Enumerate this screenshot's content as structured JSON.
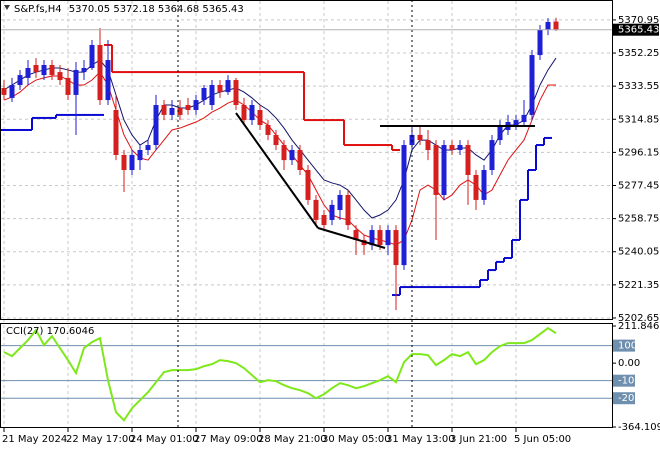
{
  "chart_data": {
    "type": "candlestick",
    "symbol": "S&P.fs,H4",
    "categories": [
      "21 May 2024",
      null,
      null,
      null,
      null,
      null,
      null,
      null,
      "22 May 17:00",
      null,
      null,
      null,
      null,
      null,
      null,
      null,
      "24 May 01:00",
      null,
      null,
      null,
      null,
      null,
      null,
      null,
      "27 May 09:00",
      null,
      null,
      null,
      null,
      null,
      null,
      null,
      "28 May 21:00",
      null,
      null,
      null,
      null,
      null,
      null,
      null,
      "30 May 05:00",
      null,
      null,
      null,
      null,
      null,
      null,
      null,
      "31 May 13:00",
      null,
      null,
      null,
      null,
      null,
      null,
      null,
      "3 Jun 21:00",
      null,
      null,
      null,
      null,
      null,
      null,
      null,
      "5 Jun 05:00",
      null,
      null,
      null,
      null,
      null
    ],
    "open": [
      5332.5,
      5326.9,
      5334.2,
      5338.2,
      5345.5,
      5339.8,
      5345.5,
      5341.5,
      5338.2,
      5328.6,
      5341.5,
      5343.8,
      5356.8,
      5325.7,
      5320.1,
      5294.7,
      5286.2,
      5291.8,
      5297.5,
      5300.3,
      5322.9,
      5317.3,
      5321.2,
      5322.9,
      5320.1,
      5325.7,
      5322.9,
      5334.2,
      5330.2,
      5337.0,
      5322.9,
      5314.4,
      5320.1,
      5311.6,
      5306.0,
      5300.3,
      5291.8,
      5297.5,
      5286.2,
      5269.3,
      5260.8,
      5258.0,
      5263.6,
      5272.1,
      5252.3,
      5246.7,
      5243.8,
      5252.3,
      5243.8,
      5252.3,
      5232.5,
      5300.3,
      5306.0,
      5303.1,
      5300.3,
      5272.1,
      5300.3,
      5297.5,
      5300.3,
      5283.4,
      5269.3,
      5286.2,
      5303.1,
      5308.8,
      5311.6,
      5313.3,
      5317.3,
      5351.1,
      5365.3,
      5370.05
    ],
    "high": [
      5337.0,
      5338.2,
      5342.7,
      5348.3,
      5349.4,
      5348.3,
      5348.3,
      5345.5,
      5343.8,
      5347.2,
      5348.3,
      5359.6,
      5366.4,
      5359.6,
      5328.6,
      5297.5,
      5297.5,
      5300.3,
      5303.1,
      5328.6,
      5325.7,
      5325.7,
      5325.7,
      5326.9,
      5328.6,
      5334.2,
      5337.0,
      5337.0,
      5339.8,
      5338.2,
      5326.9,
      5325.7,
      5322.9,
      5314.4,
      5308.8,
      5303.1,
      5300.3,
      5300.3,
      5289.0,
      5272.1,
      5263.6,
      5269.3,
      5274.9,
      5274.9,
      5255.1,
      5249.5,
      5255.1,
      5255.1,
      5255.1,
      5255.1,
      5303.1,
      5311.6,
      5311.6,
      5308.8,
      5303.1,
      5303.1,
      5303.1,
      5303.1,
      5303.1,
      5286.2,
      5289.0,
      5306.0,
      5314.4,
      5317.3,
      5317.3,
      5325.7,
      5354.0,
      5368.1,
      5372.0,
      5372.18
    ],
    "low": [
      5325.7,
      5324.6,
      5331.4,
      5334.2,
      5338.2,
      5337.0,
      5337.0,
      5334.2,
      5325.7,
      5306.0,
      5337.0,
      5342.7,
      5322.9,
      5322.9,
      5291.8,
      5273.8,
      5283.4,
      5286.2,
      5294.7,
      5297.5,
      5314.4,
      5314.4,
      5314.4,
      5317.3,
      5317.3,
      5322.9,
      5320.1,
      5326.9,
      5328.6,
      5320.1,
      5311.6,
      5311.6,
      5308.8,
      5303.1,
      5297.5,
      5286.2,
      5289.0,
      5283.4,
      5266.5,
      5255.1,
      5252.3,
      5255.1,
      5258.0,
      5252.3,
      5238.2,
      5238.2,
      5241.0,
      5241.0,
      5238.2,
      5207.1,
      5229.7,
      5297.5,
      5300.3,
      5291.8,
      5246.7,
      5269.3,
      5294.7,
      5294.7,
      5266.5,
      5263.6,
      5266.5,
      5283.4,
      5300.3,
      5306.0,
      5308.8,
      5311.6,
      5314.4,
      5348.3,
      5362.4,
      5364.68
    ],
    "close": [
      5328.6,
      5334.2,
      5339.8,
      5343.8,
      5341.5,
      5345.5,
      5339.8,
      5337.0,
      5328.6,
      5342.7,
      5343.8,
      5356.8,
      5325.7,
      5348.3,
      5294.7,
      5286.2,
      5294.7,
      5297.5,
      5300.3,
      5322.9,
      5317.3,
      5321.2,
      5317.3,
      5320.1,
      5325.7,
      5332.5,
      5334.2,
      5330.2,
      5337.0,
      5322.9,
      5314.4,
      5322.9,
      5311.6,
      5306.0,
      5300.3,
      5291.8,
      5297.5,
      5286.2,
      5269.3,
      5258.0,
      5255.1,
      5266.5,
      5272.1,
      5255.1,
      5246.7,
      5243.8,
      5252.3,
      5243.8,
      5252.3,
      5232.5,
      5300.3,
      5306.0,
      5303.1,
      5297.5,
      5272.1,
      5300.3,
      5297.5,
      5300.3,
      5283.4,
      5269.3,
      5286.2,
      5303.1,
      5311.6,
      5313.3,
      5314.4,
      5317.3,
      5351.1,
      5365.3,
      5369.8,
      5365.43
    ],
    "up_color": "#1f1fd6",
    "down_color": "#d61f1f",
    "ylim": [
      5201.5,
      5382.2
    ],
    "yticks": [
      5370.95,
      5352.25,
      5333.55,
      5314.85,
      5296.15,
      5277.45,
      5258.75,
      5240.05,
      5221.35,
      5202.65
    ],
    "grid": true,
    "lines": [
      {
        "color": "#e01010",
        "width": 1,
        "style": "line",
        "values": [
          5325.7,
          5327.4,
          5330.2,
          5334.2,
          5337.0,
          5338.2,
          5339.3,
          5339.3,
          5337.0,
          5334.2,
          5334.2,
          5337.0,
          5341.5,
          5334.2,
          5320.1,
          5306.0,
          5297.5,
          5293.0,
          5291.8,
          5297.5,
          5303.1,
          5308.8,
          5309.9,
          5311.6,
          5313.3,
          5315.6,
          5318.9,
          5321.2,
          5324.0,
          5325.7,
          5322.9,
          5318.9,
          5314.4,
          5311.6,
          5306.0,
          5300.3,
          5294.7,
          5289.0,
          5283.4,
          5274.9,
          5266.5,
          5260.8,
          5259.1,
          5258.0,
          5253.4,
          5249.5,
          5247.8,
          5246.7,
          5245.5,
          5243.8,
          5246.7,
          5258.0,
          5274.9,
          5277.7,
          5274.9,
          5269.3,
          5272.1,
          5277.7,
          5280.6,
          5277.7,
          5272.1,
          5274.9,
          5283.4,
          5291.8,
          5297.5,
          5303.1,
          5314.4,
          5325.7,
          5334.2,
          5334.2
        ]
      },
      {
        "color": "#14146e",
        "width": 1,
        "style": "line",
        "values": [
          5331.4,
          5334.2,
          5337.0,
          5339.8,
          5341.5,
          5342.7,
          5343.8,
          5343.8,
          5342.7,
          5341.5,
          5341.5,
          5345.5,
          5348.3,
          5342.7,
          5328.6,
          5314.4,
          5306.0,
          5300.3,
          5303.1,
          5314.4,
          5322.9,
          5322.9,
          5321.2,
          5321.2,
          5322.9,
          5325.7,
          5328.6,
          5330.2,
          5331.4,
          5332.5,
          5330.2,
          5326.9,
          5322.9,
          5320.1,
          5315.6,
          5309.9,
          5303.1,
          5297.5,
          5291.8,
          5286.2,
          5280.6,
          5278.9,
          5277.7,
          5274.9,
          5269.3,
          5263.6,
          5259.1,
          5260.8,
          5263.6,
          5269.3,
          5280.6,
          5297.5,
          5303.1,
          5303.1,
          5300.3,
          5297.5,
          5297.5,
          5298.6,
          5298.6,
          5294.7,
          5291.8,
          5297.5,
          5306.0,
          5311.6,
          5311.6,
          5314.4,
          5322.9,
          5334.2,
          5342.7,
          5349.4
        ]
      },
      {
        "color": "#e01010",
        "width": 2,
        "style": "step",
        "values": [
          null,
          null,
          null,
          null,
          null,
          null,
          null,
          null,
          null,
          null,
          null,
          null,
          null,
          5356.8,
          5341.5,
          5341.5,
          5341.5,
          5341.5,
          5341.5,
          5341.5,
          5341.5,
          5341.5,
          5341.5,
          5341.5,
          5341.5,
          5341.5,
          5341.5,
          5341.5,
          5341.5,
          5341.5,
          5341.5,
          5341.5,
          5341.5,
          5341.5,
          5341.5,
          5341.5,
          5341.5,
          5341.5,
          5314.4,
          5314.4,
          5314.4,
          5314.4,
          5314.4,
          5300.3,
          5300.3,
          5300.3,
          5300.3,
          5300.3,
          5300.3,
          5297.5,
          null,
          null,
          null,
          null,
          null,
          null,
          null,
          null,
          null,
          null,
          null,
          null,
          null,
          null,
          null,
          null,
          null,
          null,
          null,
          null
        ]
      },
      {
        "color": "#0a0ad2",
        "width": 2,
        "style": "step",
        "values": [
          5308.8,
          5308.8,
          5308.8,
          5308.8,
          5315.6,
          5315.6,
          5315.6,
          5317.3,
          5317.3,
          5317.3,
          5317.3,
          5317.3,
          5317.3,
          null,
          null,
          null,
          null,
          null,
          null,
          null,
          null,
          null,
          null,
          null,
          null,
          null,
          null,
          null,
          null,
          null,
          null,
          null,
          null,
          null,
          null,
          null,
          null,
          null,
          null,
          null,
          null,
          null,
          null,
          null,
          null,
          null,
          null,
          null,
          null,
          5215.6,
          5220.1,
          5220.1,
          5220.1,
          5220.1,
          5220.1,
          5220.1,
          5220.1,
          5220.1,
          5220.1,
          5220.1,
          5224.1,
          5229.7,
          5234.3,
          5236.5,
          5246.7,
          5269.3,
          5286.2,
          5300.3,
          5304.3
        ]
      }
    ],
    "indicator": {
      "title": "CCI(27)",
      "color": "#7ee81a",
      "level_color": "#6f8fae",
      "values": [
        62.9,
        40.0,
        85.7,
        131.4,
        188.6,
        102.9,
        154.3,
        85.7,
        17.1,
        -57.1,
        85.7,
        120.0,
        142.9,
        -97.1,
        -280.0,
        -325.7,
        -257.1,
        -211.4,
        -165.7,
        -108.6,
        -51.4,
        -40.0,
        -40.0,
        -40.0,
        -34.3,
        -17.1,
        -5.7,
        17.1,
        11.4,
        0,
        -28.6,
        -68.6,
        -108.6,
        -97.1,
        -102.9,
        -125.7,
        -142.9,
        -154.3,
        -171.4,
        -200.0,
        -177.1,
        -142.9,
        -114.3,
        -125.7,
        -142.9,
        -131.4,
        -114.3,
        -97.1,
        -74.3,
        -108.6,
        5.7,
        51.4,
        51.4,
        45.7,
        -11.4,
        17.1,
        51.4,
        40.0,
        62.9,
        -5.7,
        17.1,
        62.9,
        97.1,
        114.3,
        114.3,
        114.3,
        131.4,
        165.7,
        200.0,
        170.6046
      ],
      "ylim": [
        -364.1097,
        211.8469
      ],
      "yticks": [
        211.8469,
        100,
        {
          "value": 0,
          "label": "0.00"
        },
        -100,
        -200,
        -364.1097
      ],
      "levels": [
        100,
        -100,
        -200
      ]
    }
  }
}
